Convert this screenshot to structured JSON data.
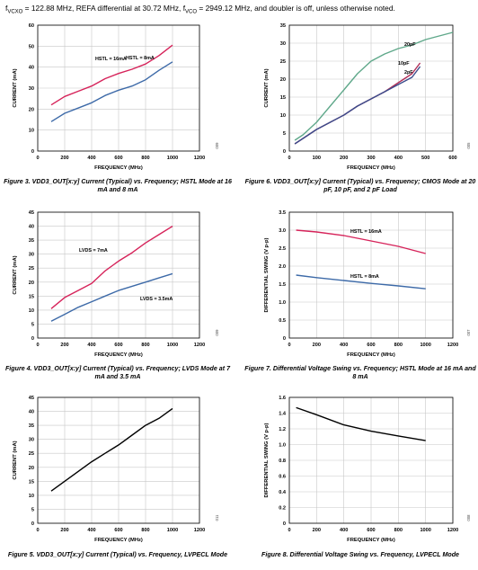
{
  "header": {
    "pre": "f",
    "sub1": "VCXO",
    "mid": " = 122.88 MHz, REFA differential at 30.72 MHz, f",
    "sub2": "VCO",
    "post": " = 2949.12 MHz, and doubler is off, unless otherwise noted."
  },
  "chart_data": [
    {
      "type": "line",
      "title": "",
      "xlabel": "FREQUENCY (MHz)",
      "ylabel": "CURRENT (mA)",
      "xlim": [
        0,
        1200
      ],
      "ylim": [
        0,
        60
      ],
      "xticks": [
        0,
        200,
        400,
        600,
        800,
        1000,
        1200
      ],
      "yticks": [
        0,
        10,
        20,
        30,
        40,
        50,
        60
      ],
      "grid": true,
      "series": [
        {
          "name": "HSTL = 16mA",
          "color": "#d6235a",
          "x": [
            100,
            200,
            300,
            400,
            500,
            600,
            700,
            800,
            900,
            1000
          ],
          "y": [
            22,
            26,
            28.5,
            31,
            34.5,
            37,
            39,
            41.5,
            45.5,
            50.5
          ]
        },
        {
          "name": "HSTL = 8mA",
          "color": "#3d6aa8",
          "x": [
            100,
            200,
            300,
            400,
            500,
            600,
            700,
            800,
            900,
            1000
          ],
          "y": [
            14,
            18,
            20.5,
            23,
            26.5,
            29,
            31,
            34,
            38.5,
            42.5
          ]
        }
      ],
      "annotations": [
        {
          "text": "HSTL = 16mA"
        },
        {
          "text": "HSTL = 8mA"
        }
      ],
      "fignum": "009",
      "caption": [
        "Figure 3. VDD3_OUT[x:y] Current (Typical) vs. Frequency; HSTL Mode at 16",
        "mA and 8 mA"
      ]
    },
    {
      "type": "line",
      "title": "",
      "xlabel": "FREQUENCY (MHz)",
      "ylabel": "CURRENT (mA)",
      "xlim": [
        0,
        600
      ],
      "ylim": [
        0,
        35
      ],
      "xticks": [
        0,
        100,
        200,
        300,
        400,
        500,
        600
      ],
      "yticks": [
        0,
        5,
        10,
        15,
        20,
        25,
        30,
        35
      ],
      "grid": true,
      "series": [
        {
          "name": "20pF",
          "color": "#5fa88a",
          "x": [
            20,
            50,
            100,
            150,
            200,
            250,
            300,
            350,
            400,
            450,
            500,
            550,
            600
          ],
          "y": [
            3,
            4.5,
            8,
            12.5,
            17,
            21.5,
            25,
            27,
            28.5,
            29.5,
            31,
            32,
            33
          ]
        },
        {
          "name": "10pF",
          "color": "#b02e57",
          "x": [
            20,
            50,
            100,
            150,
            200,
            250,
            300,
            350,
            400,
            450,
            480
          ],
          "y": [
            2,
            3.5,
            6,
            8,
            10,
            12.5,
            14.5,
            16.5,
            19,
            21.5,
            24.5
          ]
        },
        {
          "name": "2pF",
          "color": "#3a4c8c",
          "x": [
            20,
            50,
            100,
            150,
            200,
            250,
            300,
            350,
            400,
            450,
            480
          ],
          "y": [
            2,
            3.5,
            6,
            8,
            10,
            12.5,
            14.5,
            16.5,
            18.5,
            20.5,
            23.5
          ]
        }
      ],
      "annotations": [
        {
          "text": "20pF"
        },
        {
          "text": "10pF"
        },
        {
          "text": "2pF"
        }
      ],
      "fignum": "005",
      "caption": [
        "Figure 6. VDD3_OUT[x:y] Current (Typical) vs. Frequency; CMOS Mode at 20",
        "pF, 10 pF, and 2 pF Load"
      ]
    },
    {
      "type": "line",
      "title": "",
      "xlabel": "FREQUENCY (MHz)",
      "ylabel": "CURRENT (mA)",
      "xlim": [
        0,
        1200
      ],
      "ylim": [
        0,
        45
      ],
      "xticks": [
        0,
        200,
        400,
        600,
        800,
        1000,
        1200
      ],
      "yticks": [
        0,
        5,
        10,
        15,
        20,
        25,
        30,
        35,
        40,
        45
      ],
      "grid": true,
      "series": [
        {
          "name": "LVDS = 7mA",
          "color": "#d6235a",
          "x": [
            100,
            200,
            300,
            400,
            500,
            600,
            700,
            800,
            900,
            1000
          ],
          "y": [
            10.5,
            14.5,
            17,
            19.5,
            24,
            27.5,
            30.5,
            34,
            37,
            40
          ]
        },
        {
          "name": "LVDS = 3.5mA",
          "color": "#3d6aa8",
          "x": [
            100,
            200,
            300,
            400,
            500,
            600,
            700,
            800,
            900,
            1000
          ],
          "y": [
            6,
            8.5,
            11,
            13,
            15,
            17,
            18.5,
            20,
            21.5,
            23
          ]
        }
      ],
      "annotations": [
        {
          "text": "LVDS = 7mA"
        },
        {
          "text": "LVDS = 3.5mA"
        }
      ],
      "fignum": "009",
      "caption": [
        "Figure 4. VDD3_OUT[x:y] Current (Typical) vs. Frequency; LVDS Mode at 7",
        "mA and 3.5 mA"
      ]
    },
    {
      "type": "line",
      "title": "",
      "xlabel": "FREQUENCY (MHz)",
      "ylabel": "DIFFERENTIAL SWING (V p-p)",
      "xlim": [
        0,
        1200
      ],
      "ylim": [
        0,
        3.5
      ],
      "xticks": [
        0,
        200,
        400,
        600,
        800,
        1000,
        1200
      ],
      "yticks": [
        0,
        0.5,
        1.0,
        1.5,
        2.0,
        2.5,
        3.0,
        3.5
      ],
      "ytick_labels": [
        "0",
        "0.5",
        "1.0",
        "1.5",
        "2.0",
        "2.5",
        "3.0",
        "3.5"
      ],
      "grid": true,
      "series": [
        {
          "name": "HSTL = 16mA",
          "color": "#d6235a",
          "x": [
            50,
            200,
            400,
            600,
            800,
            1000
          ],
          "y": [
            3.0,
            2.95,
            2.85,
            2.7,
            2.55,
            2.35
          ]
        },
        {
          "name": "HSTL = 8mA",
          "color": "#3d6aa8",
          "x": [
            50,
            200,
            400,
            600,
            800,
            1000
          ],
          "y": [
            1.75,
            1.68,
            1.6,
            1.52,
            1.45,
            1.37
          ]
        }
      ],
      "annotations": [
        {
          "text": "HSTL = 16mA"
        },
        {
          "text": "HSTL = 8mA"
        }
      ],
      "fignum": "007",
      "caption": [
        "Figure 7. Differential Voltage Swing vs. Frequency; HSTL Mode at 16 mA and",
        "8 mA"
      ]
    },
    {
      "type": "line",
      "title": "",
      "xlabel": "FREQUENCY (MHz)",
      "ylabel": "CURRENT (mA)",
      "xlim": [
        0,
        1200
      ],
      "ylim": [
        0,
        45
      ],
      "xticks": [
        0,
        200,
        400,
        600,
        800,
        1000,
        1200
      ],
      "yticks": [
        0,
        5,
        10,
        15,
        20,
        25,
        30,
        35,
        40,
        45
      ],
      "grid": true,
      "series": [
        {
          "name": "",
          "color": "#000000",
          "x": [
            100,
            200,
            300,
            400,
            500,
            600,
            700,
            800,
            900,
            1000
          ],
          "y": [
            11.5,
            15,
            18.5,
            22,
            25,
            28,
            31.5,
            35,
            37.5,
            41
          ]
        }
      ],
      "annotations": [],
      "fignum": "011",
      "caption": [
        "Figure 5. VDD3_OUT[x:y] Current (Typical) vs. Frequency, LVPECL Mode"
      ]
    },
    {
      "type": "line",
      "title": "",
      "xlabel": "FREQUENCY (MHz)",
      "ylabel": "DIFFERENTIAL SWING (V p-p)",
      "xlim": [
        0,
        1200
      ],
      "ylim": [
        0,
        1.6
      ],
      "xticks": [
        0,
        200,
        400,
        600,
        800,
        1000,
        1200
      ],
      "yticks": [
        0,
        0.2,
        0.4,
        0.6,
        0.8,
        1.0,
        1.2,
        1.4,
        1.6
      ],
      "ytick_labels": [
        "0",
        "0.2",
        "0.4",
        "0.6",
        "0.8",
        "1.0",
        "1.2",
        "1.4",
        "1.6"
      ],
      "grid": true,
      "series": [
        {
          "name": "",
          "color": "#000000",
          "x": [
            50,
            200,
            400,
            600,
            800,
            1000
          ],
          "y": [
            1.47,
            1.38,
            1.25,
            1.17,
            1.11,
            1.05
          ]
        }
      ],
      "annotations": [],
      "fignum": "008",
      "caption": [
        "Figure 8. Differential Voltage Swing vs. Frequency, LVPECL Mode"
      ]
    }
  ]
}
